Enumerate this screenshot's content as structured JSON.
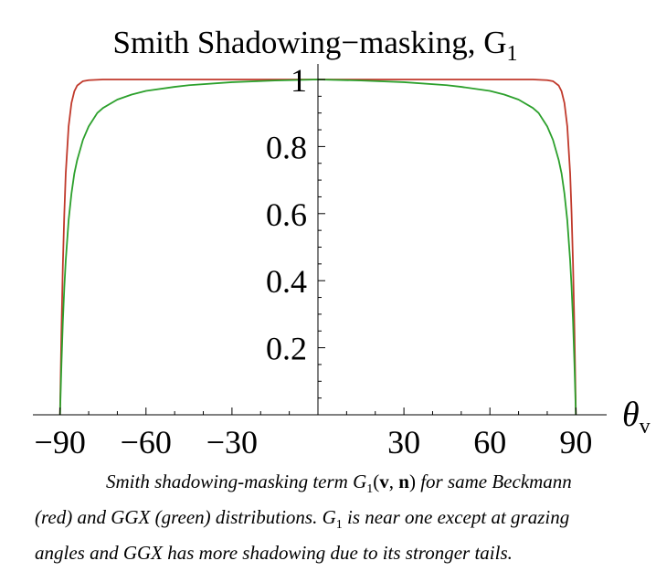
{
  "chart_data": {
    "type": "line",
    "title": "Smith Shadowing−masking, G",
    "title_subscript": "1",
    "xlabel": "θ",
    "xlabel_subscript": "v",
    "ylabel": "",
    "xlim": [
      -95,
      95
    ],
    "ylim": [
      0,
      1
    ],
    "xticks": [
      -90,
      -60,
      -30,
      30,
      60,
      90
    ],
    "xtick_labels": [
      "−90",
      "−60",
      "−30",
      "30",
      "60",
      "90"
    ],
    "yticks": [
      0.2,
      0.4,
      0.6,
      0.8,
      1
    ],
    "ytick_labels": [
      "0.2",
      "0.4",
      "0.6",
      "0.8",
      "1"
    ],
    "grid": false,
    "legend": "none",
    "series": [
      {
        "color": "#c0392b",
        "x": [
          -90,
          -89.5,
          -89,
          -88.5,
          -88,
          -87,
          -86,
          -85,
          -84,
          -82,
          -80,
          -75,
          -70,
          -60,
          -45,
          -30,
          0,
          30,
          45,
          60,
          70,
          75,
          80,
          82,
          84,
          85,
          86,
          87,
          88,
          88.5,
          89,
          89.5,
          90
        ],
        "y": [
          0,
          0.25,
          0.45,
          0.6,
          0.72,
          0.86,
          0.93,
          0.965,
          0.982,
          0.995,
          0.998,
          1,
          1,
          1,
          1,
          1,
          1,
          1,
          1,
          1,
          1,
          1,
          0.998,
          0.995,
          0.982,
          0.965,
          0.93,
          0.86,
          0.72,
          0.6,
          0.45,
          0.25,
          0
        ]
      },
      {
        "color": "#2ca02c",
        "x": [
          -90,
          -89.5,
          -89,
          -88.5,
          -88,
          -87,
          -86,
          -85,
          -84,
          -82,
          -80,
          -77,
          -75,
          -70,
          -65,
          -60,
          -50,
          -45,
          -30,
          -15,
          0,
          15,
          30,
          45,
          50,
          60,
          65,
          70,
          75,
          77,
          80,
          82,
          84,
          85,
          86,
          87,
          88,
          88.5,
          89,
          89.5,
          90
        ],
        "y": [
          0,
          0.15,
          0.28,
          0.38,
          0.46,
          0.58,
          0.66,
          0.72,
          0.76,
          0.82,
          0.86,
          0.9,
          0.915,
          0.94,
          0.955,
          0.966,
          0.978,
          0.983,
          0.992,
          0.997,
          1,
          0.997,
          0.992,
          0.983,
          0.978,
          0.966,
          0.955,
          0.94,
          0.915,
          0.9,
          0.86,
          0.82,
          0.76,
          0.72,
          0.66,
          0.58,
          0.46,
          0.38,
          0.28,
          0.15,
          0
        ]
      }
    ]
  },
  "caption": {
    "prefix": "Smith shadowing-masking term ",
    "g": "G",
    "g_sub": "1",
    "args_open": "(",
    "arg_v": "v",
    "args_comma": ", ",
    "arg_n": "n",
    "args_close": ")",
    "mid": " for same Beckmann (red) and GGX (green) distributions. ",
    "g2": "G",
    "g2_sub": "1",
    "suffix": " is near one except at grazing angles and GGX has more shadowing due to its stronger tails."
  }
}
